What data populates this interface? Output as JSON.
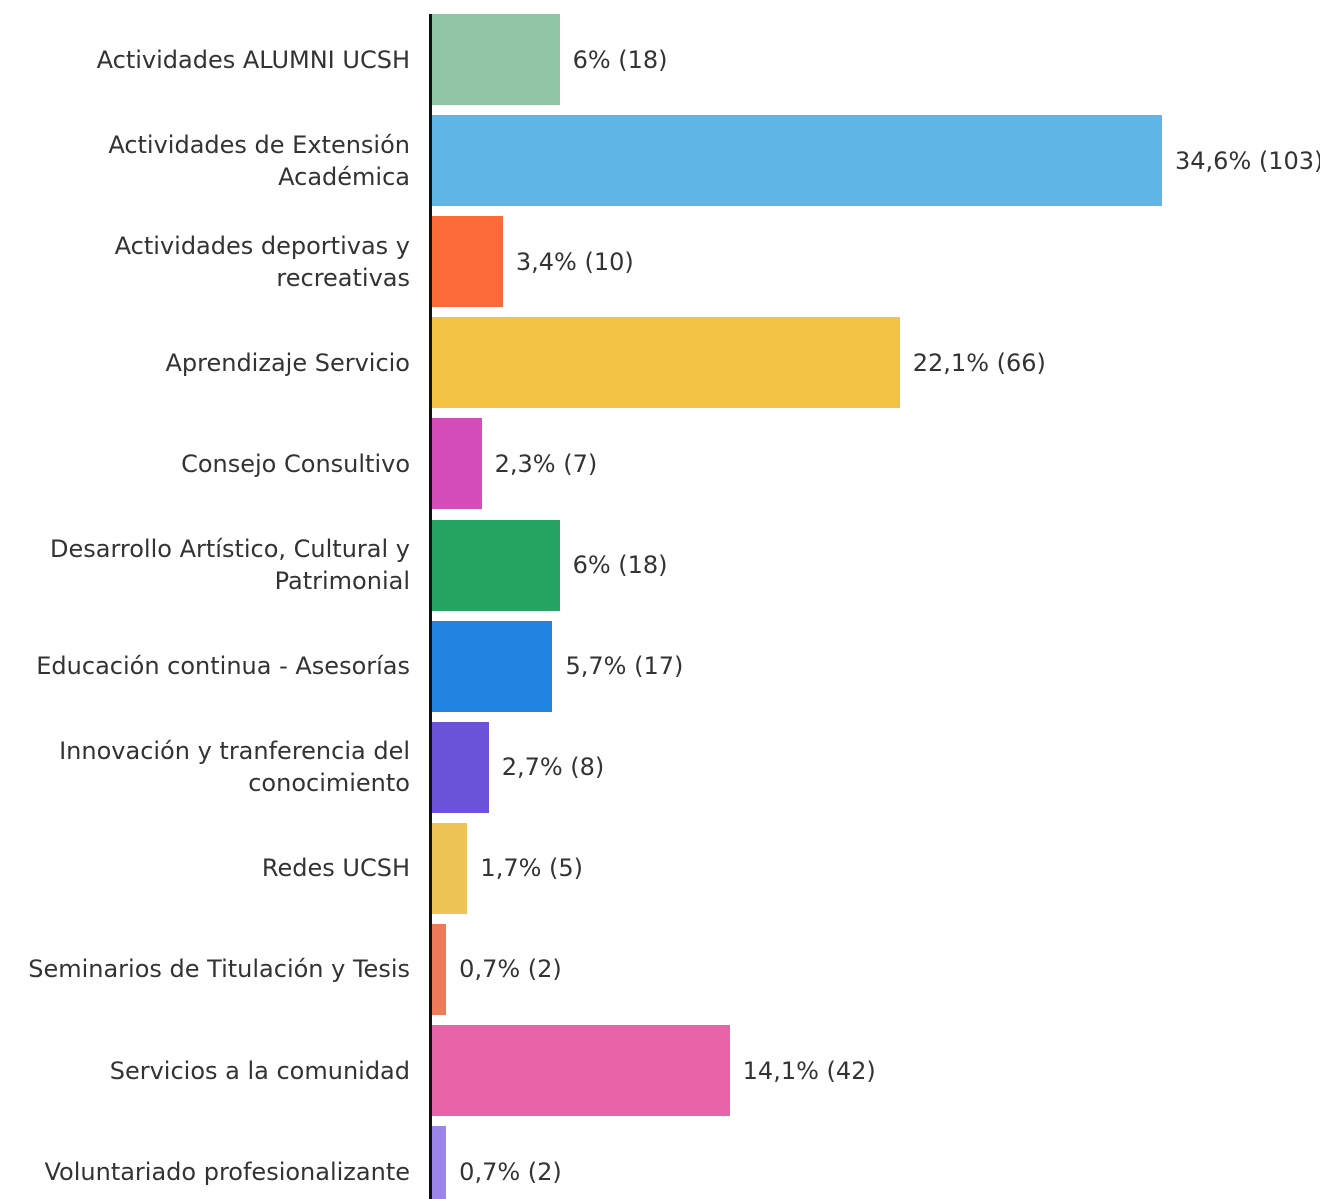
{
  "chart_data": {
    "type": "bar",
    "orientation": "horizontal",
    "categories": [
      "Actividades ALUMNI UCSH",
      "Actividades de Extensión Académica",
      "Actividades deportivas y recreativas",
      "Aprendizaje Servicio",
      "Consejo Consultivo",
      "Desarrollo Artístico, Cultural y Patrimonial",
      "Educación continua - Asesorías",
      "Innovación y tranferencia del conocimiento",
      "Redes UCSH",
      "Seminarios de Titulación y Tesis",
      "Servicios a la comunidad",
      "Voluntariado profesionalizante"
    ],
    "values": [
      18,
      103,
      10,
      66,
      7,
      18,
      17,
      8,
      5,
      2,
      42,
      2
    ],
    "value_labels": [
      "6% (18)",
      "34,6% (103)",
      "3,4% (10)",
      "22,1% (66)",
      "2,3% (7)",
      "6% (18)",
      "5,7% (17)",
      "2,7% (8)",
      "1,7% (5)",
      "0,7% (2)",
      "14,1% (42)",
      "0,7% (2)"
    ],
    "colors": [
      "#8fc4a5",
      "#5fb6e4",
      "#fd6a39",
      "#f4c343",
      "#d54db8",
      "#26a462",
      "#2084e0",
      "#6c52d8",
      "#edc455",
      "#ee7a5a",
      "#e864a9",
      "#9b84ea"
    ]
  }
}
